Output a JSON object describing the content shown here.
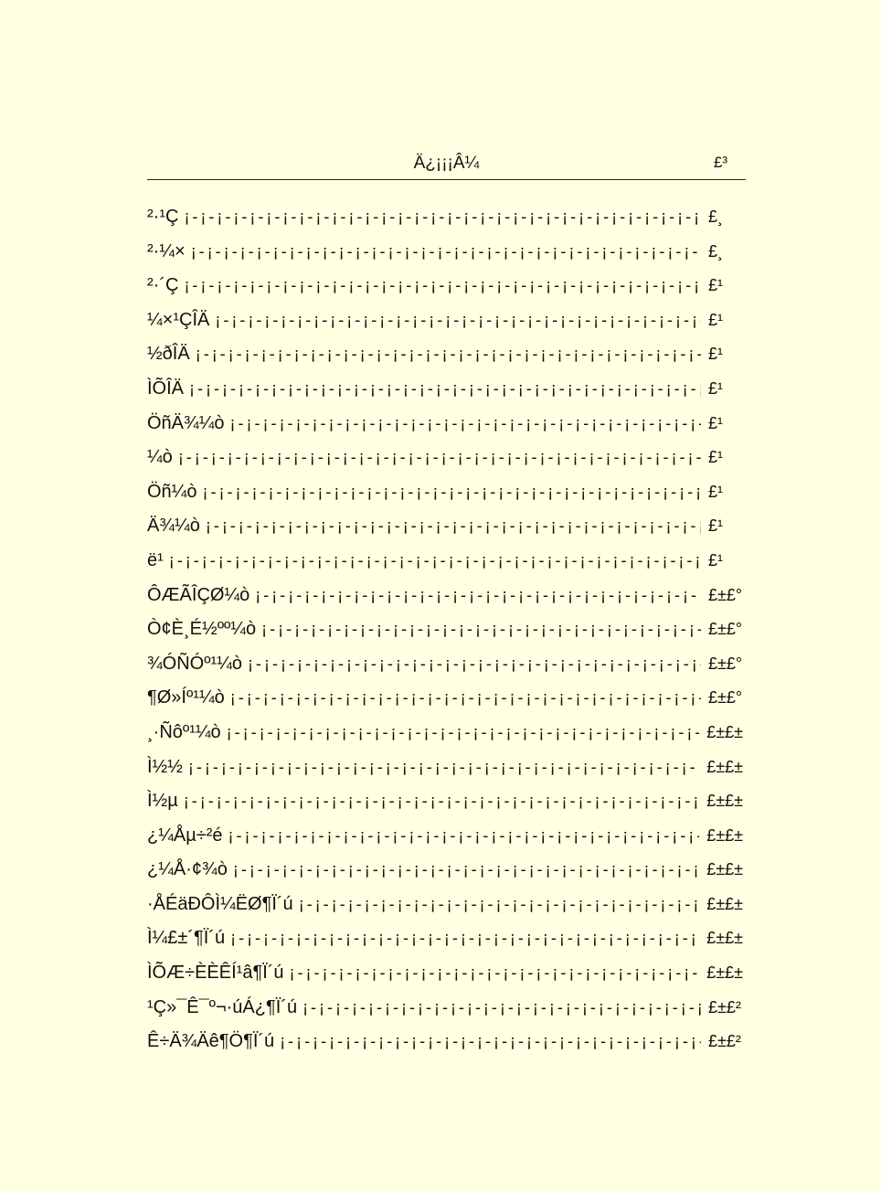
{
  "header": {
    "title": "Ä¿¡¡¡Â¼",
    "page_number": "£³"
  },
  "leader": "¡-¡-¡-¡-¡-¡-¡-¡-¡-¡-¡-¡-¡-¡-¡-¡-¡-¡-¡-¡-¡-¡-¡-¡-¡-¡-¡-¡-¡-¡-¡-¡-¡-¡-¡-¡-¡-¡-¡-¡-",
  "entries": [
    {
      "label": "²·¹Ç",
      "page": "£¸"
    },
    {
      "label": "²·¼×",
      "page": "£¸"
    },
    {
      "label": "²·´Ç",
      "page": "£¹"
    },
    {
      "label": "¼×¹ÇÎÄ",
      "page": "£¹"
    },
    {
      "label": "½ðÎÄ",
      "page": "£¹"
    },
    {
      "label": "ÌÕÎÄ",
      "page": "£¹"
    },
    {
      "label": "ÖñÄ¾¼ò",
      "page": "£¹"
    },
    {
      "label": "¼ò",
      "page": "£¹"
    },
    {
      "label": "Öñ¼ò",
      "page": "£¹"
    },
    {
      "label": "Ä¾¼ò",
      "page": "£¹"
    },
    {
      "label": "ë¹",
      "page": "£¹"
    },
    {
      "label": "ÔÆÃÎÇØ¼ò",
      "page": "£±£°"
    },
    {
      "label": "Ò¢È¸É½ºº¼ò",
      "page": "£±£°"
    },
    {
      "label": "¾ÓÑÓº¹¼ò",
      "page": "£±£°"
    },
    {
      "label": "¶Ø»Íº¹¼ò",
      "page": "£±£°"
    },
    {
      "label": "¸·Ñôº¹¼ò",
      "page": "£±£±"
    },
    {
      "label": "Ì½½",
      "page": "£±£±"
    },
    {
      "label": "Ì½µ",
      "page": "£±£±"
    },
    {
      "label": "¿¼Åµ÷²é",
      "page": "£±£±"
    },
    {
      "label": "¿¼Å·¢¾ò",
      "page": "£±£±"
    },
    {
      "label": "·ÅÉäÐÔÌ¼ËØ¶Ï´ú",
      "page": "£±£±"
    },
    {
      "label": "Ì¼£±´¶Ï´ú",
      "page": "£±£±"
    },
    {
      "label": "ÌÕÆ÷ÈÈÊÍ¹â¶Ï´ú",
      "page": "£±£±"
    },
    {
      "label": "¹Ç»¯Ê¯º¬·úÁ¿¶Ï´ú",
      "page": "£±£²"
    },
    {
      "label": "Ê÷Ä¾Äê¶Ö¶Ï´ú",
      "page": "£±£²"
    }
  ]
}
